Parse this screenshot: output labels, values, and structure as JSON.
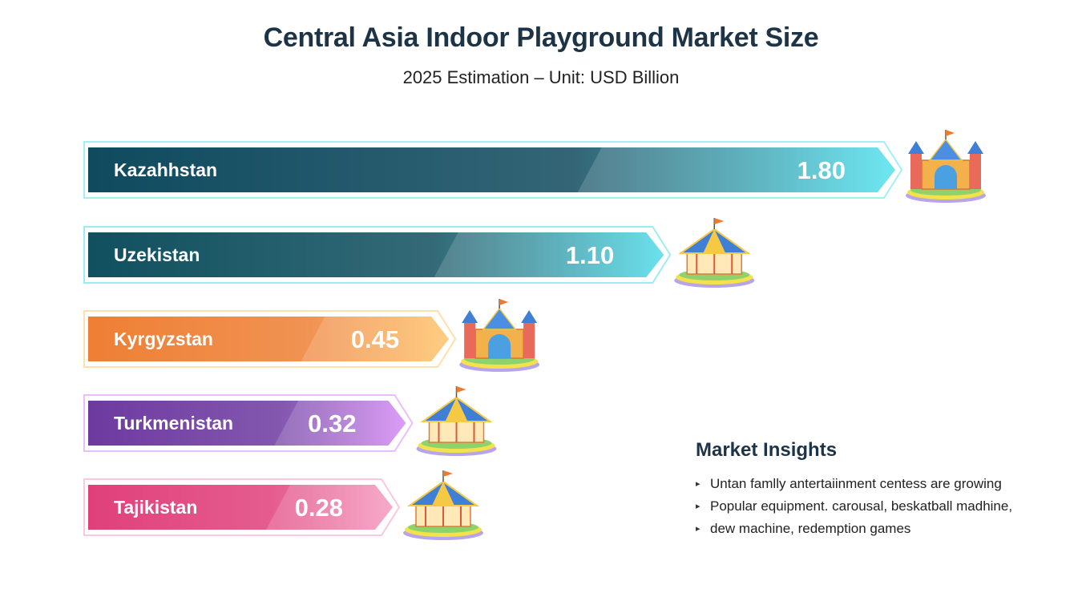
{
  "chart_data": {
    "type": "bar",
    "orientation": "horizontal",
    "title": "Central Asia Indoor Playground Market Size",
    "subtitle": "2025 Estimation – Unit: USD Billion",
    "categories": [
      "Kazahhstan",
      "Uzekistan",
      "Kyrgyzstan",
      "Turkmenistan",
      "Tajikistan"
    ],
    "values": [
      1.8,
      1.1,
      0.45,
      0.32,
      0.28
    ],
    "value_labels": [
      "1.80",
      "1.10",
      "0.45",
      "0.32",
      "0.28"
    ],
    "colors": [
      {
        "dark": "#0f4a5e",
        "light": "#52e3ef"
      },
      {
        "dark": "#10505f",
        "light": "#4fdcea"
      },
      {
        "dark": "#ee7f34",
        "light": "#ffc46a"
      },
      {
        "dark": "#6d3aa0",
        "light": "#d58af5"
      },
      {
        "dark": "#e0407a",
        "light": "#f59ac0"
      }
    ],
    "icons": [
      "castle-icon",
      "carousel-icon",
      "castle-icon",
      "carousel-icon",
      "carousel-icon"
    ],
    "grid": false,
    "legend": "none"
  },
  "insights": {
    "title": "Market Insights",
    "items": [
      "Untan famlly antertaiinment centess are growing",
      "Popular equipment. carousal, beskatball madhine,",
      "dew machine, redemption games"
    ]
  }
}
